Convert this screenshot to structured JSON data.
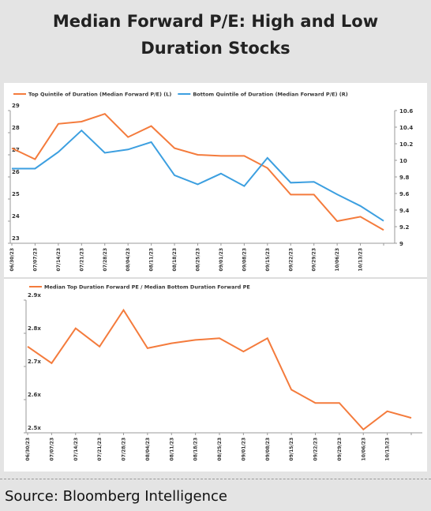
{
  "header": {
    "title": "Median Forward P/E: High and Low Duration Stocks"
  },
  "footer": {
    "source": "Source: Bloomberg Intelligence"
  },
  "chart_data": [
    {
      "type": "line",
      "categories": [
        "06/30/23",
        "07/07/23",
        "07/14/23",
        "07/21/23",
        "07/28/23",
        "08/04/23",
        "08/11/23",
        "08/18/23",
        "08/25/23",
        "09/01/23",
        "09/08/23",
        "09/15/23",
        "09/22/23",
        "09/29/23",
        "10/06/23",
        "10/13/23",
        null
      ],
      "series": [
        {
          "name": "Top Quintile of Duration (Median Forward P/E) (L)",
          "color": "#f47b3c",
          "values": [
            27.3,
            26.8,
            28.4,
            28.5,
            28.85,
            27.8,
            28.3,
            27.3,
            27.0,
            26.95,
            26.95,
            26.4,
            25.2,
            25.2,
            24.0,
            24.2,
            23.6
          ]
        },
        {
          "name": "Bottom Quintile of Duration (Median Forward P/E) (R)",
          "color": "#3c9fe0",
          "axis": "y2",
          "values": [
            9.9,
            9.9,
            10.1,
            10.36,
            10.09,
            10.13,
            10.22,
            9.82,
            9.71,
            9.84,
            9.69,
            10.03,
            9.73,
            9.74,
            9.59,
            9.45,
            9.27
          ]
        }
      ],
      "ylim": [
        23,
        29
      ],
      "yticks": [
        23,
        24,
        25,
        26,
        27,
        28,
        29
      ],
      "y2lim": [
        9,
        10.6
      ],
      "y2ticks": [
        9,
        9.2,
        9.4,
        9.6,
        9.8,
        10,
        10.2,
        10.4,
        10.6
      ]
    },
    {
      "type": "line",
      "categories": [
        "06/30/23",
        "07/07/23",
        "07/14/23",
        "07/21/23",
        "07/28/23",
        "08/04/23",
        "08/11/23",
        "08/18/23",
        "08/25/23",
        "09/01/23",
        "09/08/23",
        "09/15/23",
        "09/22/23",
        "09/29/23",
        "10/06/23",
        "10/13/23",
        null
      ],
      "series": [
        {
          "name": "Median Top Duration Forward PE / Median Bottom Duration Forward PE",
          "color": "#f47b3c",
          "values": [
            2.76,
            2.71,
            2.815,
            2.76,
            2.87,
            2.755,
            2.77,
            2.78,
            2.785,
            2.745,
            2.785,
            2.63,
            2.59,
            2.59,
            2.51,
            2.565,
            2.545
          ]
        }
      ],
      "ylim": [
        2.5,
        2.9
      ],
      "yticks": [
        {
          "value": 2.5,
          "label": "2.5x"
        },
        {
          "value": 2.6,
          "label": "2.6x"
        },
        {
          "value": 2.7,
          "label": "2.7x"
        },
        {
          "value": 2.8,
          "label": "2.8x"
        },
        {
          "value": 2.9,
          "label": "2.9x"
        }
      ]
    }
  ]
}
